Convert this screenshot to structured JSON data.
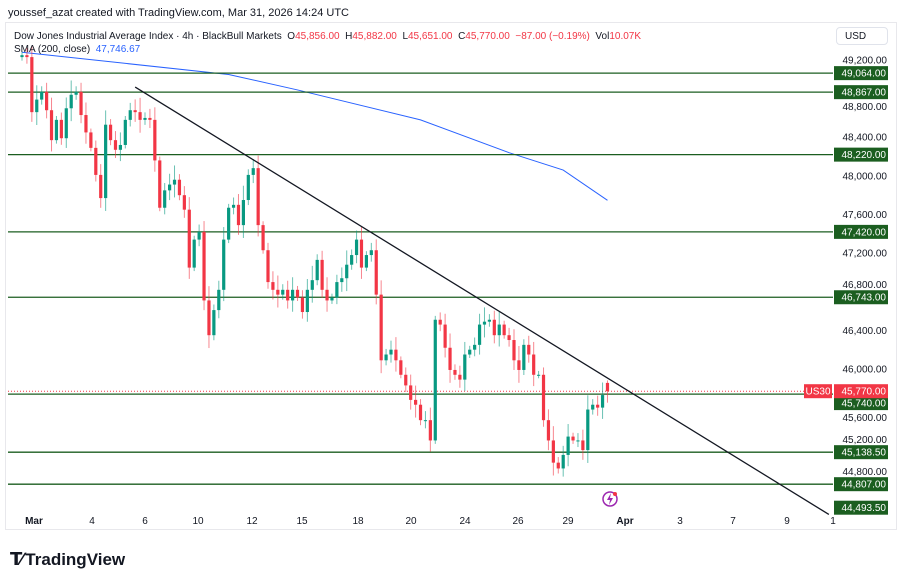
{
  "credit": "youssef_azat created with TradingView.com, Mar 31, 2026 14:24 UTC",
  "legend": {
    "symbol": "Dow Jones Industrial Average Index · 4h · BlackBull Markets",
    "o_label": "O",
    "o": "45,856.00",
    "h_label": "H",
    "h": "45,882.00",
    "l_label": "L",
    "l": "45,651.00",
    "c_label": "C",
    "c": "45,770.00",
    "change": "−87.00 (−0.19%)",
    "vol_label": "Vol",
    "vol": "10.07K",
    "sma_label": "SMA (200, close)",
    "sma_value": "47,746.67"
  },
  "currency": "USD",
  "logo": {
    "mark": "TV",
    "text": "TradingView"
  },
  "colors": {
    "up": "#089981",
    "down": "#f23645",
    "sma": "#2962ff",
    "level": "#1b5e20",
    "trend": "#131722"
  },
  "chart_data": {
    "type": "candlestick",
    "title": "Dow Jones Industrial Average Index · 4h",
    "ylim": [
      44350,
      49350
    ],
    "y_ticks": [
      49200,
      48800,
      48400,
      48000,
      47600,
      47200,
      46800,
      46400,
      46000,
      45600,
      45200,
      44800
    ],
    "y_tick_labels": [
      "49,200.00",
      "48,800.00",
      "48,400.00",
      "48,000.00",
      "47,600.00",
      "47,200.00",
      "46,800.00",
      "46,400.00",
      "46,000.00",
      "45,600.00",
      "45,200.00",
      "44,800.00"
    ],
    "x_tick_labels": [
      "Mar",
      "4",
      "6",
      "10",
      "12",
      "15",
      "18",
      "20",
      "24",
      "26",
      "29",
      "Apr",
      "3",
      "7",
      "9",
      "1"
    ],
    "first_open": 49230,
    "closes": [
      49250,
      49230,
      48660,
      48790,
      48870,
      48680,
      48370,
      48580,
      48390,
      48700,
      48840,
      48870,
      48630,
      48450,
      48290,
      48010,
      47770,
      48530,
      48370,
      48270,
      48320,
      48580,
      48680,
      48660,
      48580,
      48600,
      48580,
      48160,
      47670,
      47850,
      47910,
      47960,
      47800,
      47650,
      47050,
      47340,
      47420,
      46710,
      46350,
      46610,
      46820,
      47340,
      47670,
      47700,
      47490,
      47750,
      48010,
      48080,
      47490,
      47230,
      46900,
      46820,
      46770,
      46820,
      46710,
      46820,
      46740,
      46590,
      46820,
      46920,
      47130,
      46820,
      46710,
      46740,
      46900,
      46940,
      47080,
      47180,
      47340,
      47050,
      47180,
      47230,
      46770,
      46090,
      46150,
      46200,
      46090,
      45940,
      45830,
      45680,
      45630,
      45470,
      45470,
      45260,
      46510,
      46460,
      46220,
      45990,
      45940,
      45890,
      46150,
      46200,
      46250,
      46460,
      46490,
      46510,
      46350,
      46460,
      46350,
      46300,
      46090,
      45990,
      46250,
      46150,
      45940,
      45940,
      45470,
      45260,
      45030,
      44970,
      45110,
      45300,
      45260,
      45260,
      45160,
      45580,
      45630,
      45600,
      45730,
      45770
    ],
    "last_candle": {
      "open": 45856,
      "high": 45882,
      "low": 45651,
      "close": 45770
    },
    "sma_200": [
      [
        0,
        49280
      ],
      [
        42,
        49050
      ],
      [
        56,
        48890
      ],
      [
        81,
        48580
      ],
      [
        99,
        48240
      ],
      [
        110,
        48060
      ],
      [
        119,
        47747
      ]
    ],
    "trendline": [
      [
        23,
        48920
      ],
      [
        164,
        44493.5
      ]
    ],
    "levels": [
      {
        "price": 49064,
        "label": "49,064.00"
      },
      {
        "price": 48867,
        "label": "48,867.00"
      },
      {
        "price": 48220,
        "label": "48,220.00"
      },
      {
        "price": 47420,
        "label": "47,420.00"
      },
      {
        "price": 46743,
        "label": "46,743.00"
      },
      {
        "price": 45740,
        "label": "45,740.00"
      },
      {
        "price": 45138.5,
        "label": "45,138.50"
      },
      {
        "price": 44807,
        "label": "44,807.00"
      }
    ],
    "trend_end_label": "44,493.50",
    "last_price": {
      "symbol": "US30",
      "price": 45770,
      "label": "45,770.00"
    }
  }
}
